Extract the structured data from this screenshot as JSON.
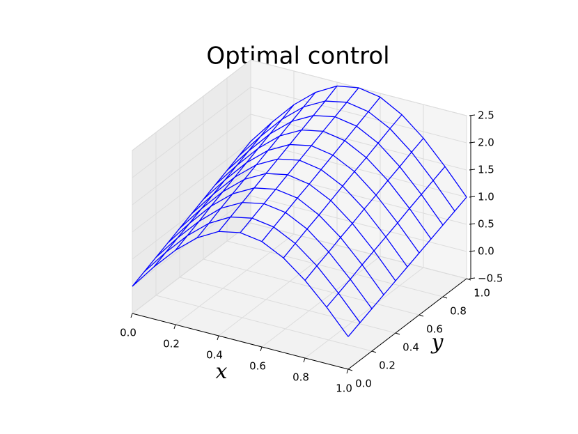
{
  "chart_data": {
    "type": "wireframe3d",
    "title": "Optimal control",
    "xlabel": "x",
    "ylabel": "y",
    "color": "#0000ff",
    "x": [
      0,
      0.1,
      0.2,
      0.3,
      0.4,
      0.5,
      0.6,
      0.7,
      0.8,
      0.9,
      1.0
    ],
    "y": [
      0,
      0.1,
      0.2,
      0.3,
      0.4,
      0.5,
      0.6,
      0.7,
      0.8,
      0.9,
      1.0
    ],
    "z": [
      [
        0.0,
        0.46,
        0.87,
        1.2,
        1.42,
        1.5,
        1.44,
        1.24,
        0.93,
        0.54,
        0.1
      ],
      [
        0.1,
        0.56,
        0.97,
        1.3,
        1.52,
        1.6,
        1.54,
        1.34,
        1.03,
        0.63,
        0.19
      ],
      [
        0.2,
        0.66,
        1.07,
        1.41,
        1.62,
        1.7,
        1.64,
        1.44,
        1.12,
        0.72,
        0.28
      ],
      [
        0.3,
        0.76,
        1.18,
        1.51,
        1.72,
        1.8,
        1.74,
        1.53,
        1.22,
        0.82,
        0.37
      ],
      [
        0.4,
        0.86,
        1.28,
        1.61,
        1.82,
        1.9,
        1.83,
        1.63,
        1.31,
        0.91,
        0.46
      ],
      [
        0.5,
        0.96,
        1.38,
        1.71,
        1.92,
        2.0,
        1.93,
        1.73,
        1.41,
        1.0,
        0.55
      ],
      [
        0.6,
        1.06,
        1.48,
        1.81,
        2.02,
        2.1,
        2.03,
        1.83,
        1.5,
        1.09,
        0.64
      ],
      [
        0.7,
        1.16,
        1.58,
        1.91,
        2.12,
        2.2,
        2.13,
        1.92,
        1.6,
        1.19,
        0.73
      ],
      [
        0.8,
        1.26,
        1.68,
        2.01,
        2.22,
        2.3,
        2.23,
        2.02,
        1.69,
        1.28,
        0.82
      ],
      [
        0.9,
        1.36,
        1.78,
        2.11,
        2.32,
        2.4,
        2.33,
        2.12,
        1.79,
        1.37,
        0.91
      ],
      [
        1.0,
        1.46,
        1.88,
        2.21,
        2.43,
        2.5,
        2.43,
        2.21,
        1.88,
        1.46,
        1.0
      ]
    ],
    "xlim": [
      0,
      1
    ],
    "ylim": [
      0,
      1
    ],
    "zlim": [
      -0.5,
      2.5
    ],
    "xticks": [
      {
        "value": 0,
        "label": "0.0"
      },
      0.2,
      0.4,
      0.6,
      0.8,
      {
        "value": 1,
        "label": "1.0"
      }
    ],
    "yticks": [
      {
        "value": 0,
        "label": "0.0"
      },
      0.2,
      0.4,
      0.6,
      0.8,
      {
        "value": 1,
        "label": "1.0"
      }
    ],
    "zticks": [
      {
        "value": -0.5,
        "label": "−0.5"
      },
      {
        "value": 0,
        "label": "0.0"
      },
      0.5,
      {
        "value": 1,
        "label": "1.0"
      },
      1.5,
      {
        "value": 2,
        "label": "2.0"
      },
      2.5
    ],
    "grid": true
  }
}
